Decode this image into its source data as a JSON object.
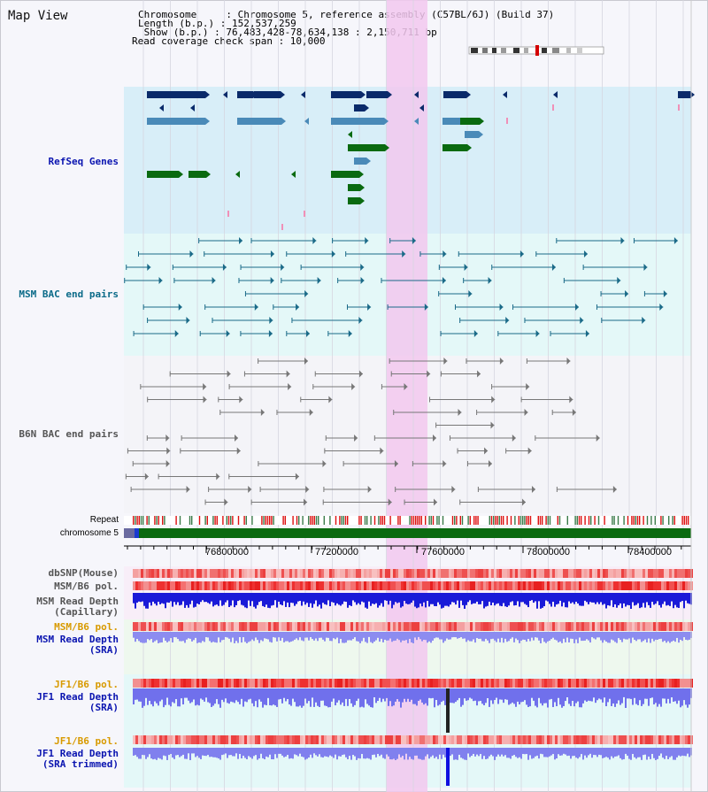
{
  "panel": {
    "title": "Map View"
  },
  "header": {
    "chromosome": "Chromosome     : Chromosome 5, reference assembly (C57BL/6J) (Build 37)",
    "length": "Length (b.p.) : 152,537,259",
    "show": " Show (b.p.) : 76,483,428-78,634,138 : 2,150,711 bp",
    "coverage": "Read coverage check span : 10,000"
  },
  "tracks": {
    "refseq": "RefSeq Genes",
    "msm_bac": "MSM BAC end pairs",
    "b6n_bac": "B6N BAC end pairs",
    "repeat": "Repeat",
    "chromosome": "chromosome 5",
    "dbsnp": "dbSNP(Mouse)",
    "msm_b6_pol": "MSM/B6 pol.",
    "msm_depth_cap_1": "MSM Read Depth",
    "msm_depth_cap_2": "(Capillary)",
    "msm_b6_pol2": "MSM/B6 pol.",
    "msm_depth_sra_1": "MSM Read Depth",
    "msm_depth_sra_2": "(SRA)",
    "jf1_b6_pol": "JF1/B6 pol.",
    "jf1_depth_sra_1": "JF1 Read Depth",
    "jf1_depth_sra_2": "(SRA)",
    "jf1_b6_pol2": "JF1/B6 pol.",
    "jf1_depth_trim_1": "JF1 Read Depth",
    "jf1_depth_trim_2": "(SRA trimmed)"
  },
  "axis": {
    "ticks": [
      "76800000",
      "77200000",
      "77600000",
      "78000000",
      "78400000"
    ]
  },
  "colors": {
    "gene_dark": "#0a2a6a",
    "gene_mid": "#4a8ab8",
    "gene_green": "#0a6a10",
    "refseq_bg": "#d8eef8",
    "msm_bg": "#e4f8f8",
    "b6n_bg": "#f4f4f8",
    "highlight": "#f2c8ee",
    "label_blue": "#0a14b0",
    "label_teal": "#0a6a88",
    "label_gray": "#555555",
    "label_orange": "#d89a00"
  }
}
